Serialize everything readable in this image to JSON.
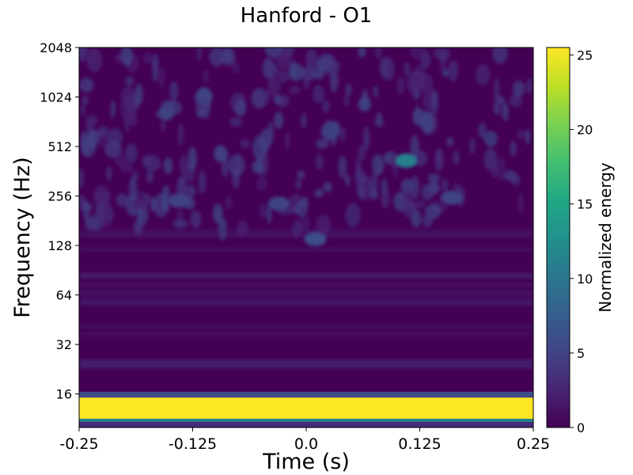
{
  "chart_data": {
    "type": "heatmap",
    "title": "Hanford - O1",
    "xlabel": "Time (s)",
    "ylabel": "Frequency (Hz)",
    "colorbar_label": "Normalized energy",
    "colormap": "viridis",
    "x_ticks": [
      -0.25,
      -0.125,
      0.0,
      0.125,
      0.25
    ],
    "x_tick_labels": [
      "-0.25",
      "-0.125",
      "0.0",
      "0.125",
      "0.25"
    ],
    "xlim": [
      -0.25,
      0.25
    ],
    "y_scale": "log2",
    "y_ticks": [
      16,
      32,
      64,
      128,
      256,
      512,
      1024,
      2048
    ],
    "y_tick_labels": [
      "16",
      "32",
      "64",
      "128",
      "256",
      "512",
      "1024",
      "2048"
    ],
    "ylim": [
      10,
      2048
    ],
    "colorbar_ticks": [
      0,
      5,
      10,
      15,
      20,
      25
    ],
    "colorbar_tick_labels": [
      "0",
      "5",
      "10",
      "15",
      "20",
      "25"
    ],
    "clim": [
      0,
      25.5
    ],
    "saturated_band_hz": [
      11.3,
      15.2
    ],
    "hot_spots": [
      {
        "t": 0.11,
        "f": 420,
        "energy": 11
      },
      {
        "t": 0.01,
        "f": 140,
        "energy": 6
      },
      {
        "t": -0.03,
        "f": 230,
        "energy": 5
      },
      {
        "t": -0.14,
        "f": 240,
        "energy": 5
      },
      {
        "t": 0.16,
        "f": 250,
        "energy": 5
      }
    ]
  },
  "colors": {
    "viridis_low": "#440154",
    "viridis_high": "#fde725",
    "background": "#ffffff"
  }
}
